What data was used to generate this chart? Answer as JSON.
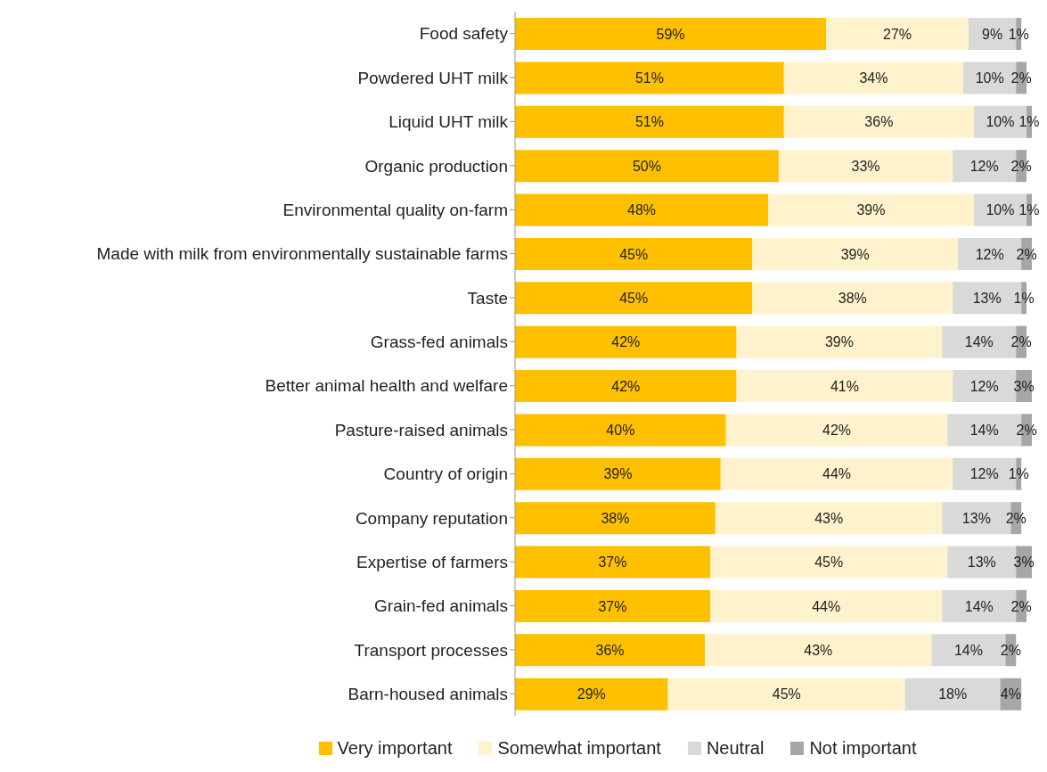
{
  "chart_data": {
    "type": "bar",
    "orientation": "horizontal",
    "stacked": true,
    "legend": "bottom",
    "categories": [
      "Food safety",
      "Powdered UHT milk",
      "Liquid UHT milk",
      "Organic production",
      "Environmental quality on-farm",
      "Made with milk from environmentally sustainable farms",
      "Taste",
      "Grass-fed animals",
      "Better animal health and welfare",
      "Pasture-raised animals",
      "Country of origin",
      "Company reputation",
      "Expertise of farmers",
      "Grain-fed animals",
      "Transport processes",
      "Barn-housed animals"
    ],
    "series": [
      {
        "name": "Very important",
        "color": "#ffc000",
        "values": [
          59,
          51,
          51,
          50,
          48,
          45,
          45,
          42,
          42,
          40,
          39,
          38,
          37,
          37,
          36,
          29
        ],
        "value_labels": [
          "59%",
          "51%",
          "51%",
          "50%",
          "48%",
          "45%",
          "45%",
          "42%",
          "42%",
          "40%",
          "39%",
          "38%",
          "37%",
          "37%",
          "36%",
          "29%"
        ]
      },
      {
        "name": "Somewhat important",
        "color": "#fff2cc",
        "values": [
          27,
          34,
          36,
          33,
          39,
          39,
          38,
          39,
          41,
          42,
          44,
          43,
          45,
          44,
          43,
          45
        ],
        "value_labels": [
          "27%",
          "34%",
          "36%",
          "33%",
          "39%",
          "39%",
          "38%",
          "39%",
          "41%",
          "42%",
          "44%",
          "43%",
          "45%",
          "44%",
          "43%",
          "45%"
        ]
      },
      {
        "name": "Neutral",
        "color": "#d9d9d9",
        "values": [
          9,
          10,
          10,
          12,
          10,
          12,
          13,
          14,
          12,
          14,
          12,
          13,
          13,
          14,
          14,
          18
        ],
        "value_labels": [
          "9%",
          "10%",
          "10%",
          "12%",
          "10%",
          "12%",
          "13%",
          "14%",
          "12%",
          "14%",
          "12%",
          "13%",
          "13%",
          "14%",
          "14%",
          "18%"
        ]
      },
      {
        "name": "Not important",
        "color": "#a6a6a6",
        "values": [
          1,
          2,
          1,
          2,
          1,
          2,
          1,
          2,
          3,
          2,
          1,
          2,
          3,
          2,
          2,
          4
        ],
        "value_labels": [
          "1%",
          "2%",
          "1%",
          "2%",
          "1%",
          "2%",
          "1%",
          "2%",
          "3%",
          "2%",
          "1%",
          "2%",
          "3%",
          "2%",
          "2%",
          "4%"
        ]
      }
    ]
  }
}
